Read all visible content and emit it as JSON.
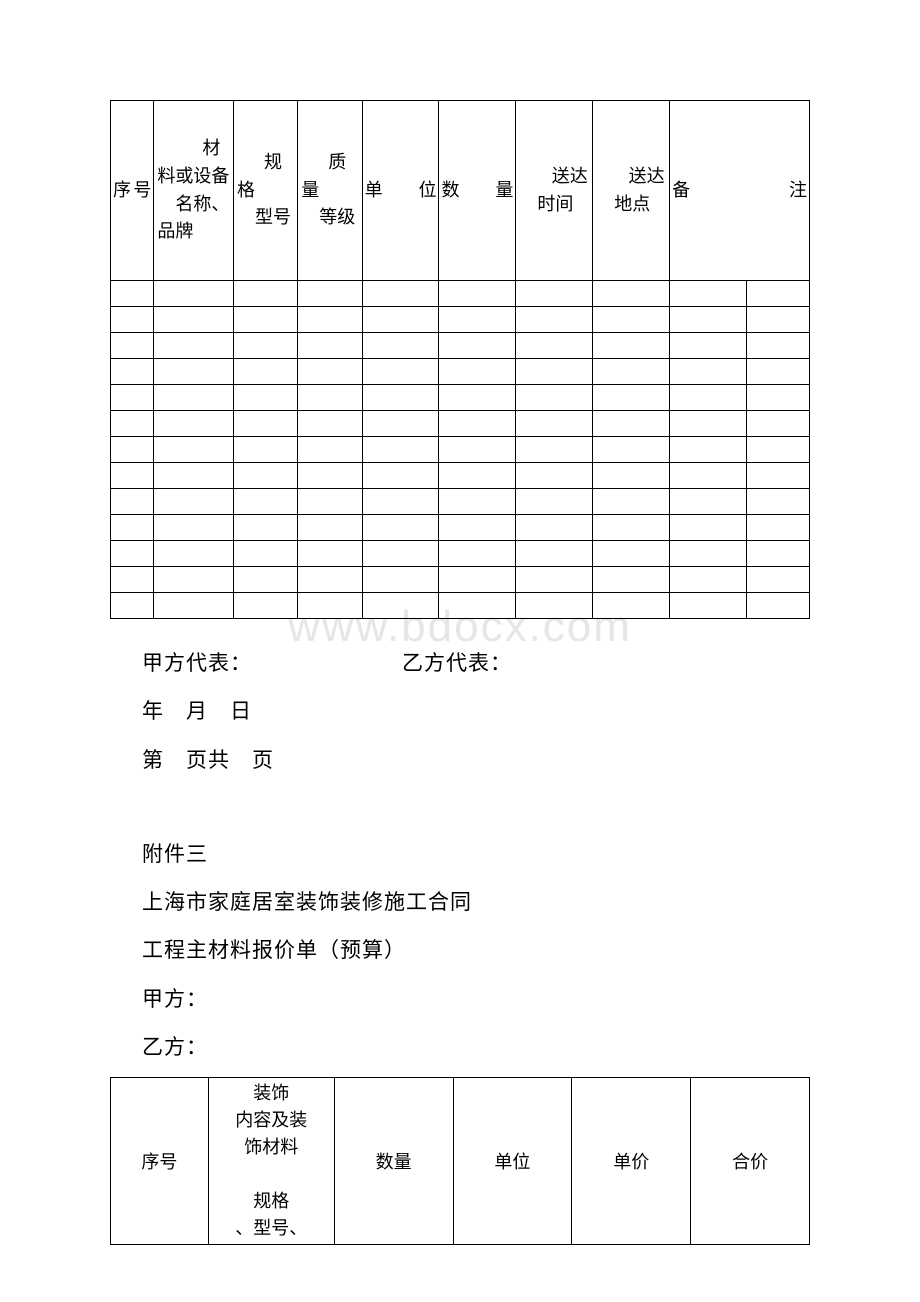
{
  "watermark": "www.bdocx.com",
  "table1": {
    "headers": [
      "序号",
      "材料或设备名称、品牌",
      "规格型号",
      "质量等级",
      "单位",
      "数量",
      "送达时间",
      "送达地点",
      "备注"
    ],
    "empty_rows": 13
  },
  "sig": {
    "party_a_rep": "甲方代表：",
    "party_b_rep": "乙方代表：",
    "date": "年　月　日",
    "page": "第　页共　页"
  },
  "attach": {
    "label": "附件三",
    "title": "上海市家庭居室装饰装修施工合同",
    "subtitle": "工程主材料报价单（预算）",
    "party_a": "甲方：",
    "party_b": "乙方："
  },
  "table2": {
    "headers": [
      "序号",
      "装饰内容及装饰材料规格、型号、",
      "数量",
      "单位",
      "单价",
      "合价"
    ]
  }
}
